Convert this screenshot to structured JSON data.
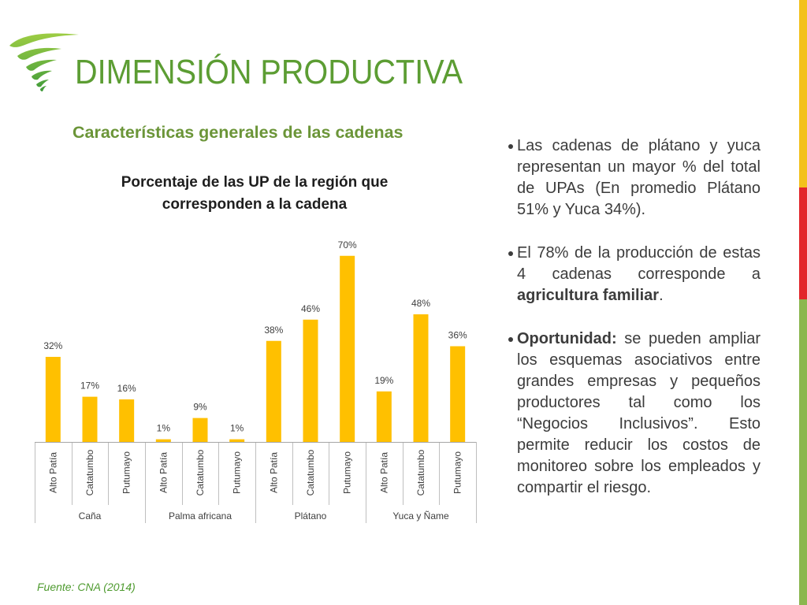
{
  "slide": {
    "title": "DIMENSIÓN PRODUCTIVA",
    "subtitle": "Características generales de las cadenas",
    "source": "Fuente: CNA (2014)",
    "logo_icon": "green-swirl-logo-icon"
  },
  "colors": {
    "title": "#5c9d33",
    "subtitle": "#6b9538",
    "source": "#4f9b30",
    "stripe_yellow": "#F3C11C",
    "stripe_red": "#E2262B",
    "stripe_green": "#8BB74F"
  },
  "chart_data": {
    "type": "bar",
    "title": "Porcentaje de las UP de la región que corresponden a la cadena",
    "grid": false,
    "legend": false,
    "y_axis_visible": false,
    "bar_color": "#FFC000",
    "groups": [
      {
        "name": "Caña",
        "categories": [
          "Alto Patía",
          "Catatumbo",
          "Putumayo"
        ],
        "values": [
          32,
          17,
          16
        ],
        "data_labels": [
          "32%",
          "17%",
          "16%"
        ]
      },
      {
        "name": "Palma africana",
        "categories": [
          "Alto Patía",
          "Catatumbo",
          "Putumayo"
        ],
        "values": [
          1,
          9,
          1
        ],
        "data_labels": [
          "1%",
          "9%",
          "1%"
        ]
      },
      {
        "name": "Plátano",
        "categories": [
          "Alto Patía",
          "Catatumbo",
          "Putumayo"
        ],
        "values": [
          38,
          46,
          70
        ],
        "data_labels": [
          "38%",
          "46%",
          "70%"
        ]
      },
      {
        "name": "Yuca y Ñame",
        "categories": [
          "Alto Patía",
          "Catatumbo",
          "Putumayo"
        ],
        "values": [
          19,
          48,
          36
        ],
        "data_labels": [
          "19%",
          "48%",
          "36%"
        ]
      }
    ]
  },
  "bullets": [
    {
      "text": "Las cadenas de plátano y yuca representan un mayor % del total de UPAs (En promedio Plátano 51% y Yuca 34%)."
    },
    {
      "text": "El 78% de la producción de estas 4 cadenas corresponde a ",
      "emphasis": "agricultura familiar",
      "end": "."
    },
    {
      "lead": "Oportunidad:",
      "text": " se pueden ampliar los esquemas asociativos entre grandes empresas y pequeños productores tal como los “Negocios Inclusivos”. Esto permite reducir los costos de monitoreo sobre los empleados y compartir el riesgo."
    }
  ]
}
